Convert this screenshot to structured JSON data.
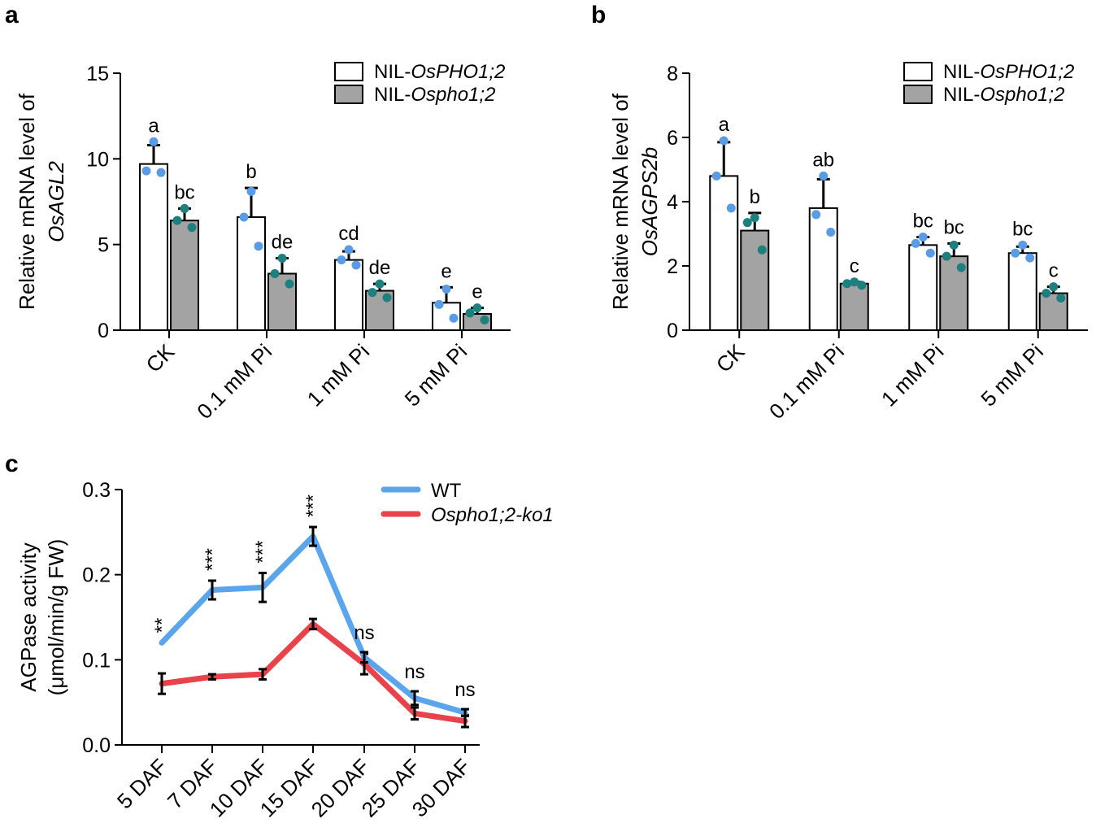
{
  "panel_labels": [
    "a",
    "b",
    "c"
  ],
  "colors": {
    "open_bar": "#ffffff",
    "filled_bar": "#a3a3a3",
    "dot_blue": "#5a9be6",
    "dot_teal": "#1e7f7f",
    "wt_line": "#5aa5ec",
    "ko_line": "#e8424b"
  },
  "chart_data": [
    {
      "type": "bar",
      "panel": "a",
      "ylabel_prefix": "Relative mRNA level of",
      "ylabel_gene": "OsAGL2",
      "ylim": [
        0,
        15
      ],
      "yticks": [
        "0",
        "5",
        "10",
        "15"
      ],
      "categories": [
        "CK",
        "0.1 mM Pi",
        "1 mM Pi",
        "5 mM Pi"
      ],
      "series": [
        {
          "name": "NIL-OsPHO1;2",
          "legend_prefix": "NIL-",
          "legend_italic": "OsPHO1;2",
          "values": [
            9.7,
            6.6,
            4.1,
            1.6
          ],
          "errors": [
            1.1,
            1.7,
            0.5,
            0.9
          ],
          "points": [
            [
              11.0,
              9.3,
              9.2
            ],
            [
              8.1,
              6.6,
              4.9
            ],
            [
              4.7,
              4.1,
              3.8
            ],
            [
              2.4,
              1.5,
              0.7
            ]
          ],
          "letters": [
            "a",
            "b",
            "cd",
            "e"
          ]
        },
        {
          "name": "NIL-Ospho1;2",
          "legend_prefix": "NIL-",
          "legend_italic": "Ospho1;2",
          "values": [
            6.4,
            3.3,
            2.3,
            0.95
          ],
          "errors": [
            0.7,
            0.9,
            0.4,
            0.35
          ],
          "points": [
            [
              7.1,
              6.4,
              6.0
            ],
            [
              4.2,
              3.3,
              2.7
            ],
            [
              2.7,
              2.2,
              1.9
            ],
            [
              1.3,
              1.0,
              0.6
            ]
          ],
          "letters": [
            "bc",
            "de",
            "de",
            "e"
          ]
        }
      ]
    },
    {
      "type": "bar",
      "panel": "b",
      "ylabel_prefix": "Relative mRNA level of",
      "ylabel_gene": "OsAGPS2b",
      "ylim": [
        0,
        8
      ],
      "yticks": [
        "0",
        "2",
        "4",
        "6",
        "8"
      ],
      "categories": [
        "CK",
        "0.1 mM Pi",
        "1 mM Pi",
        "5 mM Pi"
      ],
      "series": [
        {
          "name": "NIL-OsPHO1;2",
          "legend_prefix": "NIL-",
          "legend_italic": "OsPHO1;2",
          "values": [
            4.8,
            3.8,
            2.65,
            2.4
          ],
          "errors": [
            1.05,
            0.9,
            0.25,
            0.2
          ],
          "points": [
            [
              5.9,
              4.8,
              3.8
            ],
            [
              4.8,
              3.6,
              3.05
            ],
            [
              2.9,
              2.7,
              2.4
            ],
            [
              2.65,
              2.4,
              2.25
            ]
          ],
          "letters": [
            "a",
            "ab",
            "bc",
            "bc"
          ]
        },
        {
          "name": "NIL-Ospho1;2",
          "legend_prefix": "NIL-",
          "legend_italic": "Ospho1;2",
          "values": [
            3.1,
            1.45,
            2.3,
            1.15
          ],
          "errors": [
            0.55,
            0.05,
            0.4,
            0.2
          ],
          "points": [
            [
              3.5,
              3.35,
              2.5
            ],
            [
              1.5,
              1.45,
              1.4
            ],
            [
              2.65,
              2.3,
              1.95
            ],
            [
              1.35,
              1.15,
              1.0
            ]
          ],
          "letters": [
            "b",
            "c",
            "bc",
            "c"
          ]
        }
      ]
    },
    {
      "type": "line",
      "panel": "c",
      "ylabel_line1": "AGPase activity",
      "ylabel_line2": "(μmol/min/g FW)",
      "ylim": [
        0,
        0.3
      ],
      "yticks": [
        "0.0",
        "0.1",
        "0.2",
        "0.3"
      ],
      "categories": [
        "5 DAF",
        "7 DAF",
        "10 DAF",
        "15 DAF",
        "20 DAF",
        "25 DAF",
        "30 DAF"
      ],
      "series": [
        {
          "name": "WT",
          "values": [
            0.12,
            0.182,
            0.185,
            0.245,
            0.103,
            0.055,
            0.038
          ],
          "errors": [
            0.0,
            0.011,
            0.017,
            0.011,
            0.006,
            0.008,
            0.004
          ]
        },
        {
          "name": "Ospho1;2-ko1",
          "values": [
            0.072,
            0.08,
            0.083,
            0.142,
            0.095,
            0.037,
            0.028
          ],
          "errors": [
            0.012,
            0.003,
            0.006,
            0.006,
            0.012,
            0.007,
            0.007
          ]
        }
      ],
      "significance": [
        "**",
        "***",
        "***",
        "***",
        "ns",
        "ns",
        "ns"
      ]
    }
  ]
}
